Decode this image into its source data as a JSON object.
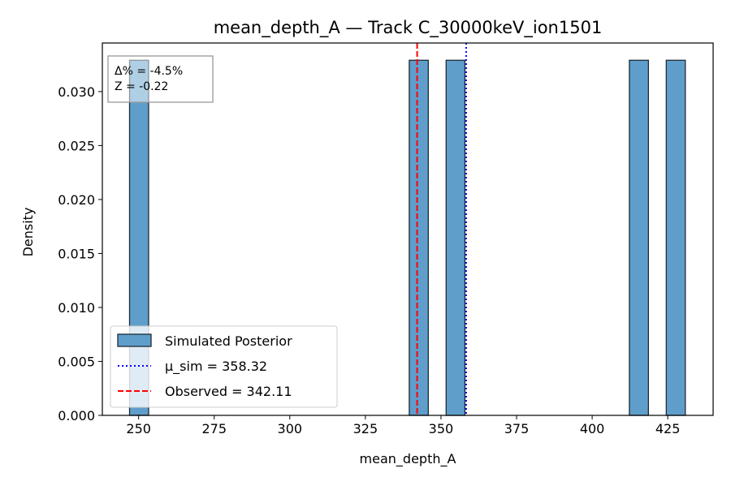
{
  "chart_data": {
    "type": "bar",
    "title": "mean_depth_A — Track C_30000keV_ion1501",
    "xlabel": "mean_depth_A",
    "ylabel": "Density",
    "xlim": [
      238,
      440
    ],
    "ylim": [
      0,
      0.0345
    ],
    "x_ticks": [
      250,
      275,
      300,
      325,
      350,
      375,
      400,
      425
    ],
    "y_ticks": [
      0.0,
      0.005,
      0.01,
      0.015,
      0.02,
      0.025,
      0.03
    ],
    "y_tick_labels": [
      "0.000",
      "0.005",
      "0.010",
      "0.015",
      "0.020",
      "0.025",
      "0.030"
    ],
    "grid": false,
    "histogram": {
      "name": "Simulated Posterior",
      "color": "#5f9ecb",
      "edge_color": "#1f2a36",
      "bins": [
        {
          "x0": 247,
          "x1": 253.3,
          "density": 0.0329
        },
        {
          "x0": 339.5,
          "x1": 345.8,
          "density": 0.0329
        },
        {
          "x0": 351.7,
          "x1": 357.9,
          "density": 0.0329
        },
        {
          "x0": 412.3,
          "x1": 418.6,
          "density": 0.0329
        },
        {
          "x0": 424.5,
          "x1": 430.8,
          "density": 0.0329
        }
      ]
    },
    "reference_lines": [
      {
        "name": "μ_sim = 358.32",
        "x": 358.32,
        "color": "#0000ff",
        "style": "dotted"
      },
      {
        "name": "Observed = 342.11",
        "x": 342.11,
        "color": "#ff0000",
        "style": "dashed"
      }
    ],
    "legend_position": "lower-left",
    "stats_box": {
      "position": "top-left",
      "lines": [
        "Δ% = -4.5%",
        "Z = -0.22"
      ]
    }
  }
}
